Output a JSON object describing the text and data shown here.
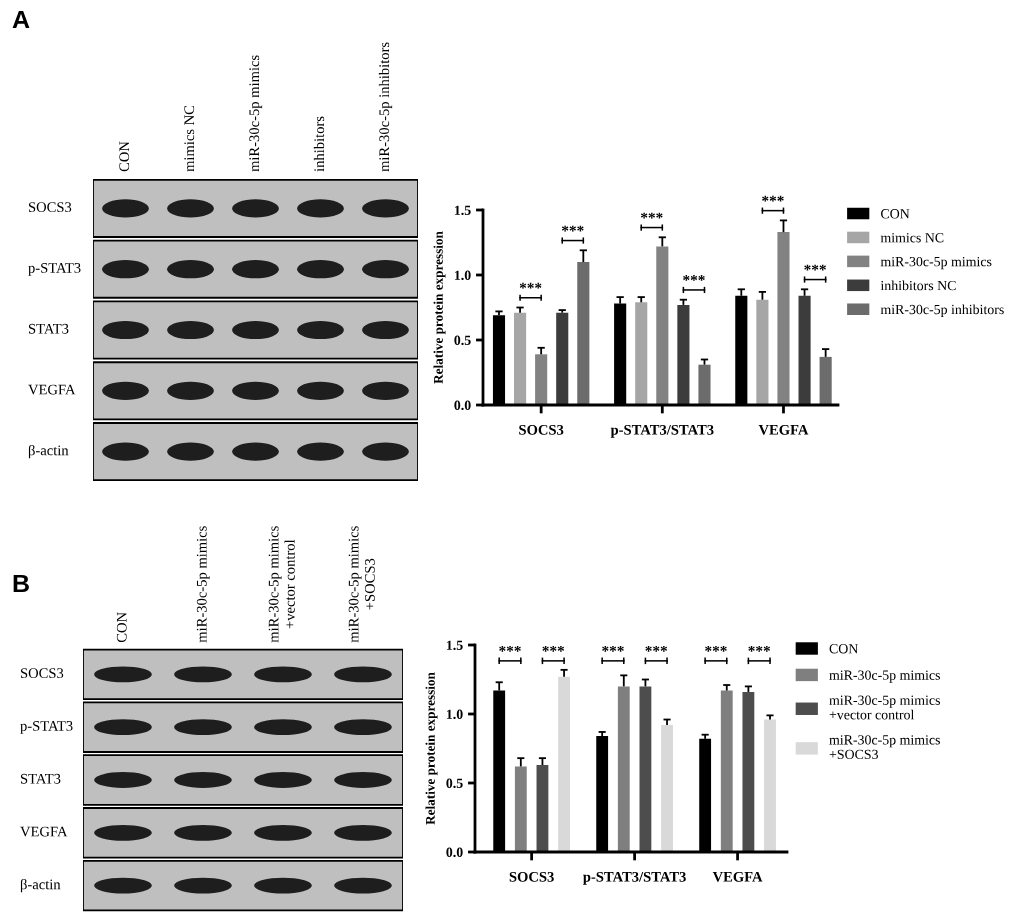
{
  "chart_data": [
    {
      "type": "other",
      "title": "A",
      "categories": [
        "CON",
        "mimics NC",
        "miR-30c-5p mimics",
        "inhibitors",
        "miR-30c-5p inhibitors"
      ],
      "y_categories": [
        "SOCS3",
        "p-STAT3",
        "STAT3",
        "VEGFA",
        "β-actin"
      ]
    },
    {
      "type": "bar",
      "ylabel": "Relative protein expression",
      "categories": [
        "SOCS3",
        "p-STAT3/STAT3",
        "VEGFA"
      ],
      "series": [
        {
          "name": "CON",
          "color": "#000000",
          "values": [
            0.69,
            0.78,
            0.84
          ],
          "errors": [
            [
              0.69,
              0.72
            ],
            [
              0.78,
              0.83
            ],
            [
              0.84,
              0.89
            ]
          ]
        },
        {
          "name": "mimics NC",
          "color": "#a6a6a6",
          "values": [
            0.71,
            0.79,
            0.81
          ],
          "errors": [
            [
              0.71,
              0.75
            ],
            [
              0.79,
              0.83
            ],
            [
              0.81,
              0.87
            ]
          ]
        },
        {
          "name": "miR-30c-5p mimics",
          "color": "#828282",
          "values": [
            0.39,
            1.22,
            1.33
          ],
          "errors": [
            [
              0.39,
              0.44
            ],
            [
              1.22,
              1.29
            ],
            [
              1.33,
              1.42
            ]
          ]
        },
        {
          "name": "inhibitors NC",
          "color": "#3c3c3c",
          "values": [
            0.71,
            0.77,
            0.84
          ],
          "errors": [
            [
              0.71,
              0.73
            ],
            [
              0.77,
              0.81
            ],
            [
              0.84,
              0.89
            ]
          ]
        },
        {
          "name": "miR-30c-5p inhibitors",
          "color": "#6c6c6c",
          "values": [
            1.1,
            0.31,
            0.37
          ],
          "errors": [
            [
              1.1,
              1.19
            ],
            [
              0.31,
              0.35
            ],
            [
              0.37,
              0.43
            ]
          ]
        }
      ],
      "ylim": [
        0,
        1.5
      ],
      "yticks": [
        {
          "value": 0,
          "label": "0.0"
        },
        {
          "value": 0.5,
          "label": "0.5"
        },
        {
          "value": 1,
          "label": "1.0"
        },
        {
          "value": 1.5,
          "label": "1.5"
        }
      ],
      "grid": false,
      "legend": "right",
      "annotations": [
        "***",
        "***",
        "***",
        "***",
        "***",
        "***"
      ]
    },
    {
      "type": "other",
      "title": "B",
      "categories": [
        "CON",
        "miR-30c-5p mimics",
        "miR-30c-5p mimics\n+vector control",
        "miR-30c-5p mimics\n+SOCS3"
      ],
      "y_categories": [
        "SOCS3",
        "p-STAT3",
        "STAT3",
        "VEGFA",
        "β-actin"
      ]
    },
    {
      "type": "bar",
      "ylabel": "Relative protein expression",
      "categories": [
        "SOCS3",
        "p-STAT3/STAT3",
        "VEGFA"
      ],
      "series": [
        {
          "name": "CON",
          "color": "#000000",
          "values": [
            1.17,
            0.84,
            0.82
          ],
          "errors": [
            [
              1.17,
              1.23
            ],
            [
              0.84,
              0.87
            ],
            [
              0.82,
              0.85
            ]
          ]
        },
        {
          "name": "miR-30c-5p mimics",
          "color": "#7f7f7f",
          "values": [
            0.62,
            1.2,
            1.17
          ],
          "errors": [
            [
              0.62,
              0.68
            ],
            [
              1.2,
              1.28
            ],
            [
              1.17,
              1.21
            ]
          ]
        },
        {
          "name": "miR-30c-5p mimics\n+vector control",
          "color": "#4d4d4d",
          "values": [
            0.63,
            1.2,
            1.16
          ],
          "errors": [
            [
              0.63,
              0.68
            ],
            [
              1.2,
              1.25
            ],
            [
              1.16,
              1.2
            ]
          ]
        },
        {
          "name": "miR-30c-5p mimics\n+SOCS3",
          "color": "#d9d9d9",
          "values": [
            1.27,
            0.92,
            0.96
          ],
          "errors": [
            [
              1.27,
              1.32
            ],
            [
              0.92,
              0.96
            ],
            [
              0.96,
              0.99
            ]
          ]
        }
      ],
      "ylim": [
        0,
        1.5
      ],
      "yticks": [
        {
          "value": 0,
          "label": "0.0"
        },
        {
          "value": 0.5,
          "label": "0.5"
        },
        {
          "value": 1,
          "label": "1.0"
        },
        {
          "value": 1.5,
          "label": "1.5"
        }
      ],
      "grid": false,
      "legend": "right",
      "annotations": [
        "***",
        "***",
        "***",
        "***",
        "***",
        "***"
      ]
    }
  ]
}
